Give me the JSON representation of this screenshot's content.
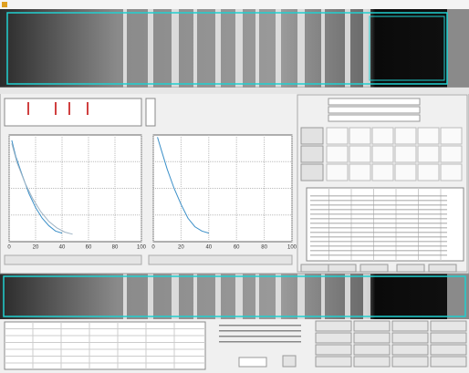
{
  "plots": [
    {
      "xticks": [
        0,
        20,
        40,
        60,
        80,
        100
      ],
      "xlim": [
        0,
        100
      ],
      "ylim": [
        0,
        100
      ],
      "series": [
        {
          "color": "#3a8fc8",
          "x": [
            2,
            5,
            10,
            15,
            20,
            25,
            30,
            35,
            40
          ],
          "values": [
            95,
            80,
            62,
            45,
            32,
            22,
            15,
            10,
            8
          ]
        },
        {
          "color": "#9fb4c4",
          "x": [
            2,
            6,
            12,
            18,
            24,
            30,
            36,
            42,
            48
          ],
          "values": [
            92,
            74,
            55,
            40,
            28,
            19,
            13,
            9,
            7
          ]
        }
      ]
    },
    {
      "xticks": [
        0,
        20,
        40,
        60,
        80,
        100
      ],
      "xlim": [
        0,
        100
      ],
      "ylim": [
        0,
        100
      ],
      "series": [
        {
          "color": "#3a8fc8",
          "x": [
            3,
            6,
            10,
            15,
            20,
            25,
            30,
            35,
            40
          ],
          "values": [
            98,
            85,
            68,
            50,
            35,
            22,
            14,
            10,
            8
          ]
        }
      ]
    }
  ]
}
